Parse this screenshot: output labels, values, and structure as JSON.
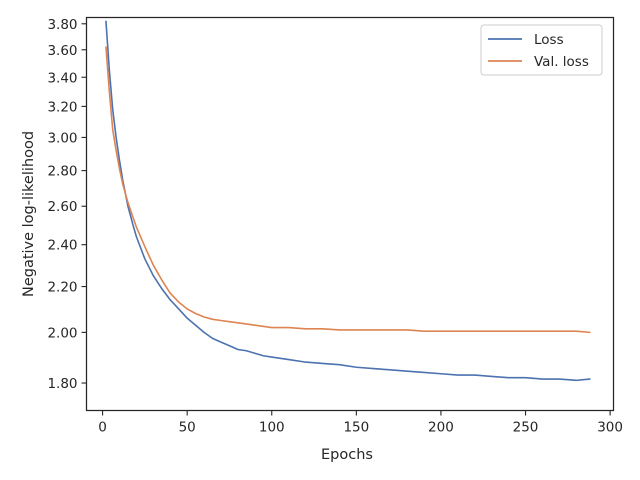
{
  "chart_data": {
    "type": "line",
    "xlabel": "Epochs",
    "ylabel": "Negative log-likelihood",
    "xlim": [
      -9.5,
      302
    ],
    "ylim": [
      1.7,
      3.85
    ],
    "y_scale": "log",
    "x_ticks": [
      0,
      50,
      100,
      150,
      200,
      250,
      300
    ],
    "y_ticks": [
      1.8,
      2.0,
      2.2,
      2.4,
      2.6,
      2.8,
      3.0,
      3.2,
      3.4,
      3.6,
      3.8
    ],
    "x_tick_labels": [
      "0",
      "50",
      "100",
      "150",
      "200",
      "250",
      "300"
    ],
    "y_tick_labels": [
      "1.80",
      "2.00",
      "2.20",
      "2.40",
      "2.60",
      "2.80",
      "3.00",
      "3.20",
      "3.40",
      "3.60",
      "3.80"
    ],
    "grid": false,
    "legend_position": "top-right",
    "series": [
      {
        "name": "Loss",
        "color": "#4c72b0",
        "points": [
          [
            2,
            3.82
          ],
          [
            4,
            3.45
          ],
          [
            6,
            3.18
          ],
          [
            8,
            3.0
          ],
          [
            10,
            2.86
          ],
          [
            12,
            2.74
          ],
          [
            15,
            2.6
          ],
          [
            18,
            2.5
          ],
          [
            20,
            2.44
          ],
          [
            25,
            2.33
          ],
          [
            30,
            2.25
          ],
          [
            35,
            2.19
          ],
          [
            40,
            2.14
          ],
          [
            45,
            2.1
          ],
          [
            50,
            2.06
          ],
          [
            55,
            2.03
          ],
          [
            60,
            2.0
          ],
          [
            65,
            1.975
          ],
          [
            70,
            1.96
          ],
          [
            75,
            1.945
          ],
          [
            80,
            1.93
          ],
          [
            85,
            1.925
          ],
          [
            90,
            1.915
          ],
          [
            95,
            1.905
          ],
          [
            100,
            1.9
          ],
          [
            110,
            1.89
          ],
          [
            120,
            1.88
          ],
          [
            130,
            1.875
          ],
          [
            140,
            1.87
          ],
          [
            150,
            1.86
          ],
          [
            160,
            1.855
          ],
          [
            170,
            1.85
          ],
          [
            180,
            1.845
          ],
          [
            190,
            1.84
          ],
          [
            200,
            1.835
          ],
          [
            210,
            1.83
          ],
          [
            220,
            1.83
          ],
          [
            230,
            1.825
          ],
          [
            240,
            1.82
          ],
          [
            250,
            1.82
          ],
          [
            260,
            1.815
          ],
          [
            270,
            1.815
          ],
          [
            280,
            1.81
          ],
          [
            288,
            1.815
          ]
        ]
      },
      {
        "name": "Val. loss",
        "color": "#dd8452",
        "points": [
          [
            2,
            3.62
          ],
          [
            4,
            3.3
          ],
          [
            6,
            3.05
          ],
          [
            8,
            2.92
          ],
          [
            10,
            2.81
          ],
          [
            12,
            2.72
          ],
          [
            15,
            2.62
          ],
          [
            18,
            2.54
          ],
          [
            20,
            2.49
          ],
          [
            25,
            2.39
          ],
          [
            30,
            2.3
          ],
          [
            35,
            2.23
          ],
          [
            40,
            2.17
          ],
          [
            45,
            2.13
          ],
          [
            50,
            2.1
          ],
          [
            55,
            2.08
          ],
          [
            60,
            2.065
          ],
          [
            65,
            2.055
          ],
          [
            70,
            2.05
          ],
          [
            75,
            2.045
          ],
          [
            80,
            2.04
          ],
          [
            90,
            2.03
          ],
          [
            100,
            2.02
          ],
          [
            110,
            2.02
          ],
          [
            120,
            2.015
          ],
          [
            130,
            2.015
          ],
          [
            140,
            2.01
          ],
          [
            150,
            2.01
          ],
          [
            160,
            2.01
          ],
          [
            170,
            2.01
          ],
          [
            180,
            2.01
          ],
          [
            190,
            2.005
          ],
          [
            200,
            2.005
          ],
          [
            210,
            2.005
          ],
          [
            220,
            2.005
          ],
          [
            230,
            2.005
          ],
          [
            240,
            2.005
          ],
          [
            250,
            2.005
          ],
          [
            260,
            2.005
          ],
          [
            270,
            2.005
          ],
          [
            280,
            2.005
          ],
          [
            288,
            2.0
          ]
        ]
      }
    ]
  }
}
